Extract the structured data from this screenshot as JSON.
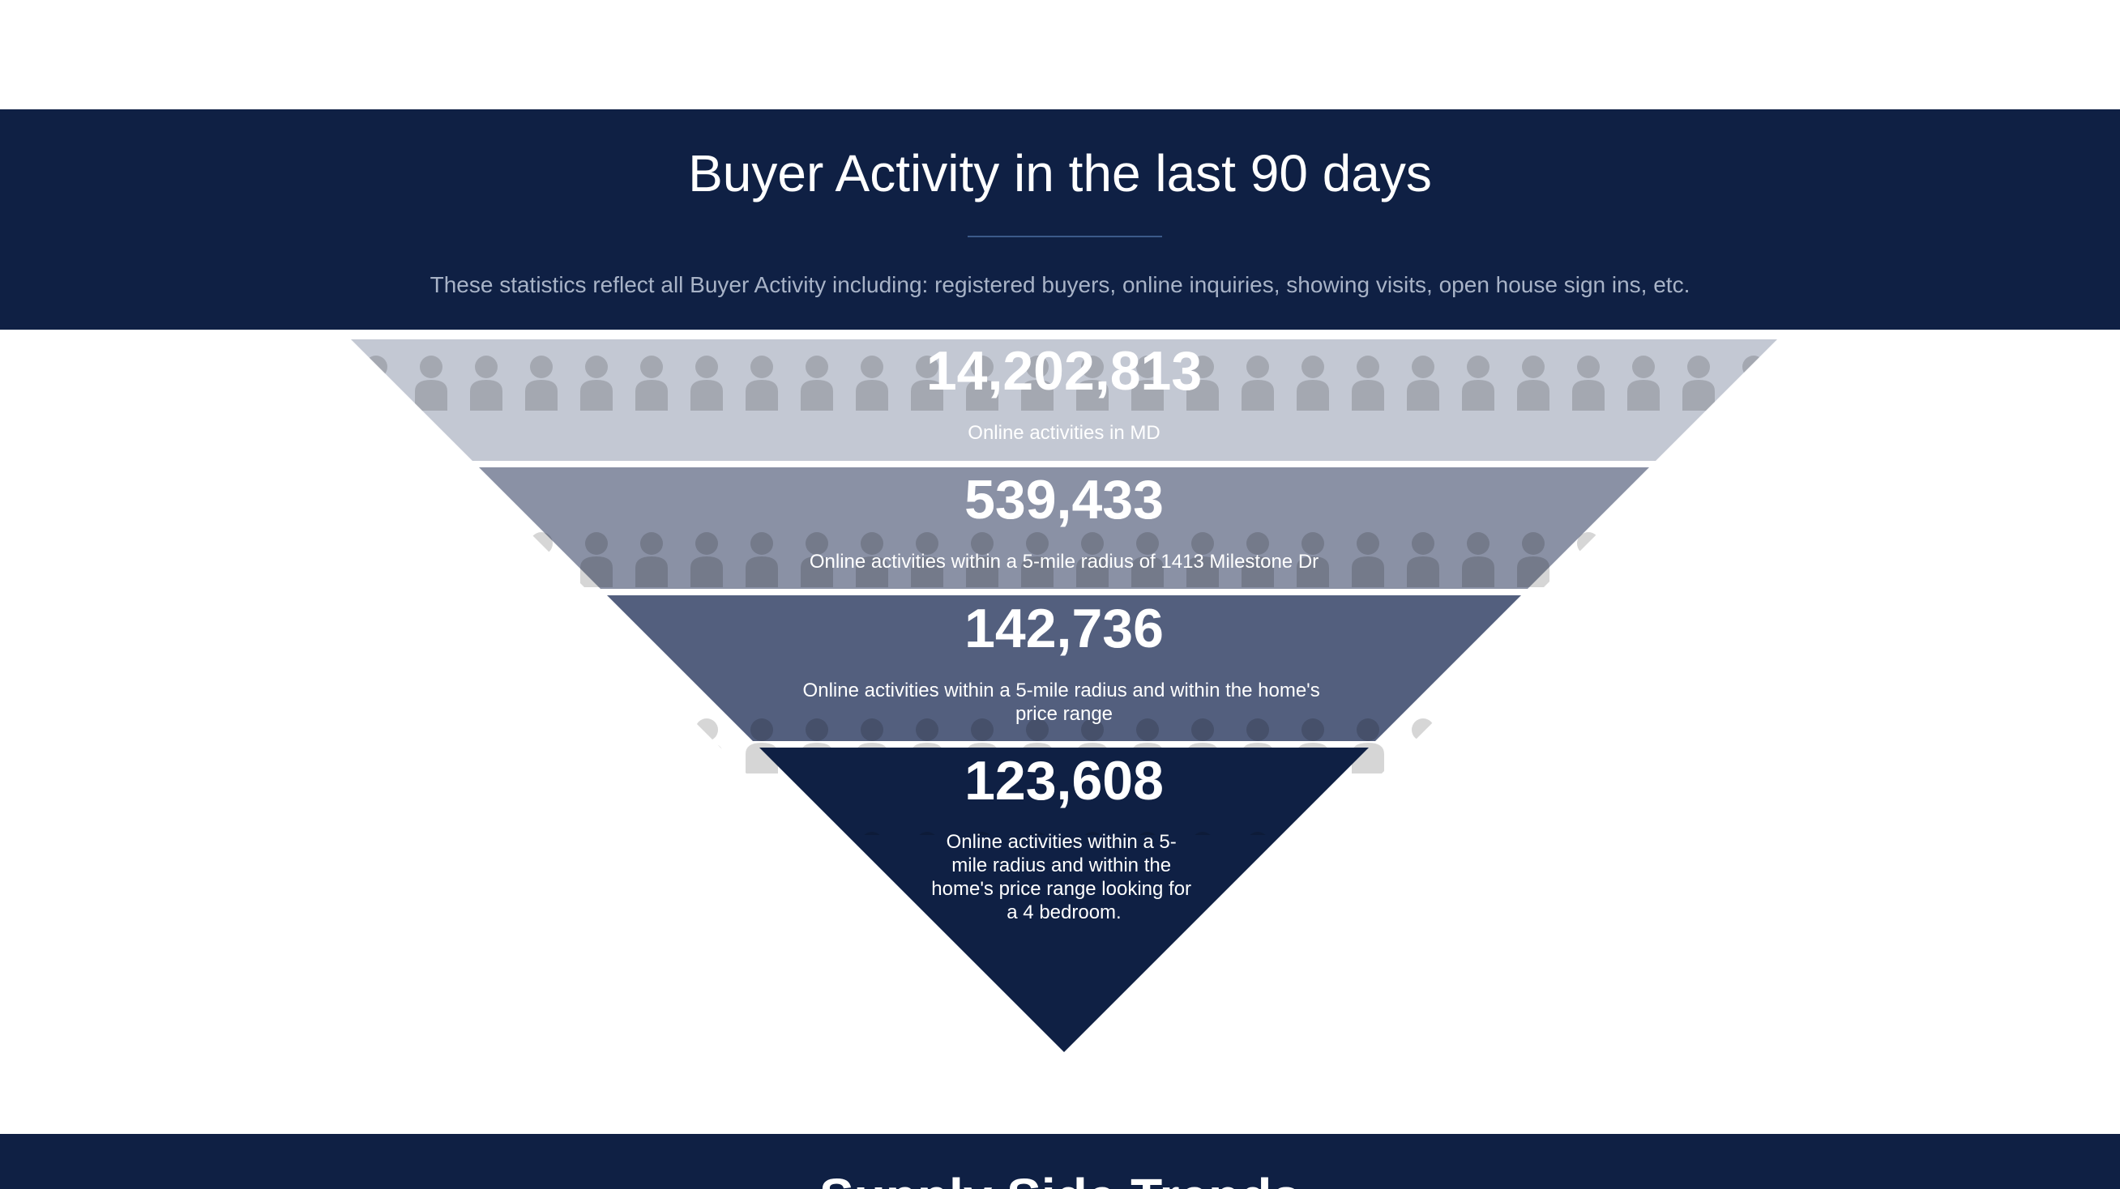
{
  "header": {
    "title": "Buyer Activity in the last 90 days",
    "subtitle": "These statistics reflect all Buyer Activity including: registered buyers, online inquiries, showing visits, open house sign ins, etc."
  },
  "funnel": {
    "tiers": [
      {
        "value": "14,202,813",
        "label_lines": [
          "Online activities in MD"
        ],
        "color": "#c3c8d3"
      },
      {
        "value": "539,433",
        "label_lines": [
          "Online activities within a 5-mile radius of 1413 Milestone Dr"
        ],
        "color": "#8a91a5"
      },
      {
        "value": "142,736",
        "label_lines": [
          "Online activities within a 5-mile radius and within the home's",
          "price range"
        ],
        "color": "#535f7e"
      },
      {
        "value": "123,608",
        "label_lines": [
          "Online activities within a 5-",
          "mile radius and within the",
          "home's price range looking for",
          "a 4 bedroom."
        ],
        "color": "#0f2044"
      }
    ]
  },
  "next_section": {
    "title": "Supply Side Trends"
  },
  "colors": {
    "navy": "#0f2044",
    "subtitle_text": "#a8b3c7"
  }
}
